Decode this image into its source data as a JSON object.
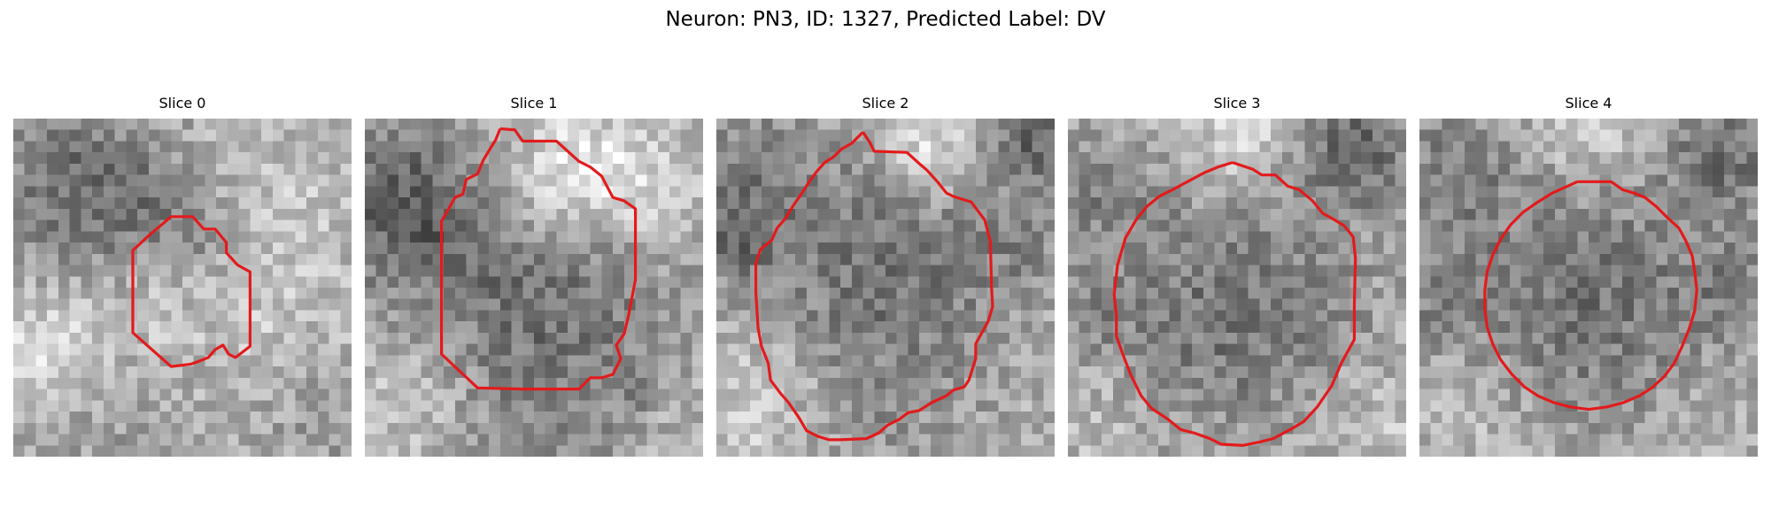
{
  "figure": {
    "title": "Neuron: PN3, ID: 1327, Predicted Label: DV"
  },
  "panels": [
    {
      "title": "Slice 0",
      "outline_color": "#e31a1c"
    },
    {
      "title": "Slice 1",
      "outline_color": "#e31a1c"
    },
    {
      "title": "Slice 2",
      "outline_color": "#e31a1c"
    },
    {
      "title": "Slice 3",
      "outline_color": "#e31a1c"
    },
    {
      "title": "Slice 4",
      "outline_color": "#e31a1c"
    }
  ]
}
